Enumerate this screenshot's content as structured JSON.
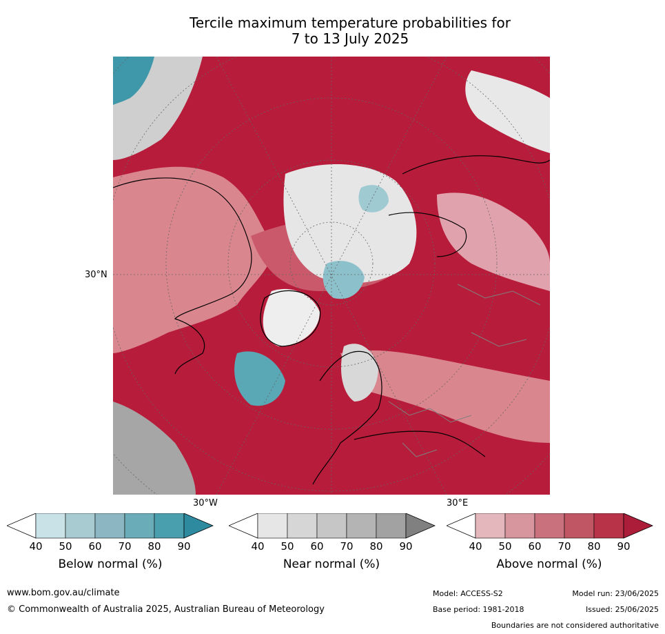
{
  "title_line1": "Tercile maximum temperature probabilities for",
  "title_line2": "7 to 13 July 2025",
  "map": {
    "lat_label": "30°N",
    "lon_label_left": "30°W",
    "lon_label_right": "30°E",
    "colors": {
      "above_dark": "#b71c3a",
      "above_mid": "#c9596b",
      "above_light": "#e0a2ac",
      "near_light": "#e6e6e6",
      "near_mid": "#bdbdbd",
      "near_dark": "#999999",
      "below_light": "#c8e0e6",
      "below_mid": "#6fb1bf",
      "below_dark": "#2f8fa3"
    }
  },
  "colorbars": [
    {
      "title": "Below normal (%)",
      "ticks": [
        "40",
        "50",
        "60",
        "70",
        "80",
        "90"
      ],
      "colors": [
        "#ffffff",
        "#c9e2e8",
        "#a8cbd1",
        "#8bb6c2",
        "#6aadb9",
        "#4a9fae",
        "#2e8a9f"
      ]
    },
    {
      "title": "Near normal (%)",
      "ticks": [
        "40",
        "50",
        "60",
        "70",
        "80",
        "90"
      ],
      "colors": [
        "#ffffff",
        "#e6e6e6",
        "#d6d6d6",
        "#c6c6c6",
        "#b4b4b4",
        "#a2a2a2",
        "#808080"
      ]
    },
    {
      "title": "Above normal (%)",
      "ticks": [
        "40",
        "50",
        "60",
        "70",
        "80",
        "90"
      ],
      "colors": [
        "#ffffff",
        "#e4b7bd",
        "#d7959e",
        "#c9727e",
        "#c05563",
        "#b83347",
        "#ac1d3a"
      ]
    }
  ],
  "footer": {
    "website": "www.bom.gov.au/climate",
    "copyright": "© Commonwealth of Australia 2025, Australian Bureau of Meteorology",
    "model": "Model: ACCESS-S2",
    "base_period": "Base period: 1981-2018",
    "model_run": "Model run: 23/06/2025",
    "issued": "Issued: 25/06/2025",
    "disclaimer": "Boundaries are not considered authoritative"
  }
}
